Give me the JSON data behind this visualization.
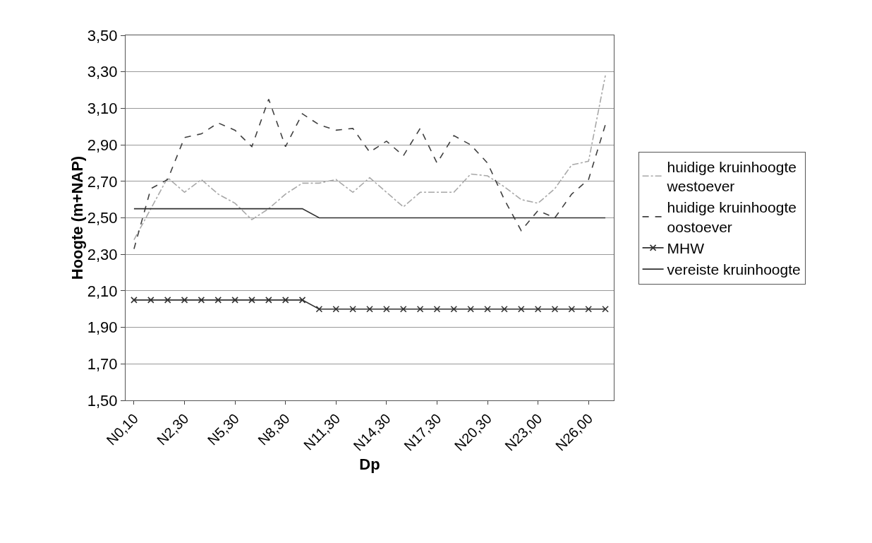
{
  "chart_data": {
    "type": "line",
    "xlabel": "Dp",
    "ylabel": "Hoogte (m+NAP)",
    "categories": [
      "N0,10",
      null,
      null,
      "N2,30",
      null,
      null,
      "N5,30",
      null,
      null,
      "N8,30",
      null,
      null,
      "N11,30",
      null,
      null,
      "N14,30",
      null,
      null,
      "N17,30",
      null,
      null,
      "N20,30",
      null,
      null,
      "N23,00",
      null,
      null,
      "N26,00",
      null
    ],
    "series": [
      {
        "name": "huidige kruinhoogte westoever",
        "color": "#a8a8a8",
        "line_style": "dashdot",
        "marker": "none",
        "values": [
          2.38,
          2.55,
          2.72,
          2.64,
          2.71,
          2.63,
          2.58,
          2.49,
          2.55,
          2.63,
          2.69,
          2.69,
          2.71,
          2.64,
          2.72,
          2.64,
          2.56,
          2.64,
          2.64,
          2.64,
          2.74,
          2.73,
          2.67,
          2.6,
          2.58,
          2.66,
          2.79,
          2.81,
          3.28
        ]
      },
      {
        "name": "huidige kruinhoogte oostoever",
        "color": "#404040",
        "line_style": "dashed",
        "marker": "none",
        "values": [
          2.33,
          2.66,
          2.71,
          2.94,
          2.96,
          3.02,
          2.98,
          2.89,
          3.15,
          2.89,
          3.07,
          3.01,
          2.98,
          2.99,
          2.86,
          2.92,
          2.84,
          2.99,
          2.8,
          2.95,
          2.9,
          2.8,
          2.6,
          2.43,
          2.54,
          2.5,
          2.63,
          2.71,
          3.01
        ]
      },
      {
        "name": "MHW",
        "color": "#303030",
        "line_style": "solid",
        "marker": "cross",
        "values": [
          2.05,
          2.05,
          2.05,
          2.05,
          2.05,
          2.05,
          2.05,
          2.05,
          2.05,
          2.05,
          2.05,
          2.0,
          2.0,
          2.0,
          2.0,
          2.0,
          2.0,
          2.0,
          2.0,
          2.0,
          2.0,
          2.0,
          2.0,
          2.0,
          2.0,
          2.0,
          2.0,
          2.0,
          2.0
        ]
      },
      {
        "name": "vereiste kruinhoogte",
        "color": "#303030",
        "line_style": "solid",
        "marker": "none",
        "values": [
          2.55,
          2.55,
          2.55,
          2.55,
          2.55,
          2.55,
          2.55,
          2.55,
          2.55,
          2.55,
          2.55,
          2.5,
          2.5,
          2.5,
          2.5,
          2.5,
          2.5,
          2.5,
          2.5,
          2.5,
          2.5,
          2.5,
          2.5,
          2.5,
          2.5,
          2.5,
          2.5,
          2.5,
          2.5
        ]
      }
    ],
    "ylim": [
      1.5,
      3.5
    ],
    "yticks": [
      {
        "value": 1.5,
        "label": "1,50"
      },
      {
        "value": 1.7,
        "label": "1,70"
      },
      {
        "value": 1.9,
        "label": "1,90"
      },
      {
        "value": 2.1,
        "label": "2,10"
      },
      {
        "value": 2.3,
        "label": "2,30"
      },
      {
        "value": 2.5,
        "label": "2,50"
      },
      {
        "value": 2.7,
        "label": "2,70"
      },
      {
        "value": 2.9,
        "label": "2,90"
      },
      {
        "value": 3.1,
        "label": "3,10"
      },
      {
        "value": 3.3,
        "label": "3,30"
      },
      {
        "value": 3.5,
        "label": "3,50"
      }
    ],
    "grid": "y",
    "legend": "right"
  }
}
